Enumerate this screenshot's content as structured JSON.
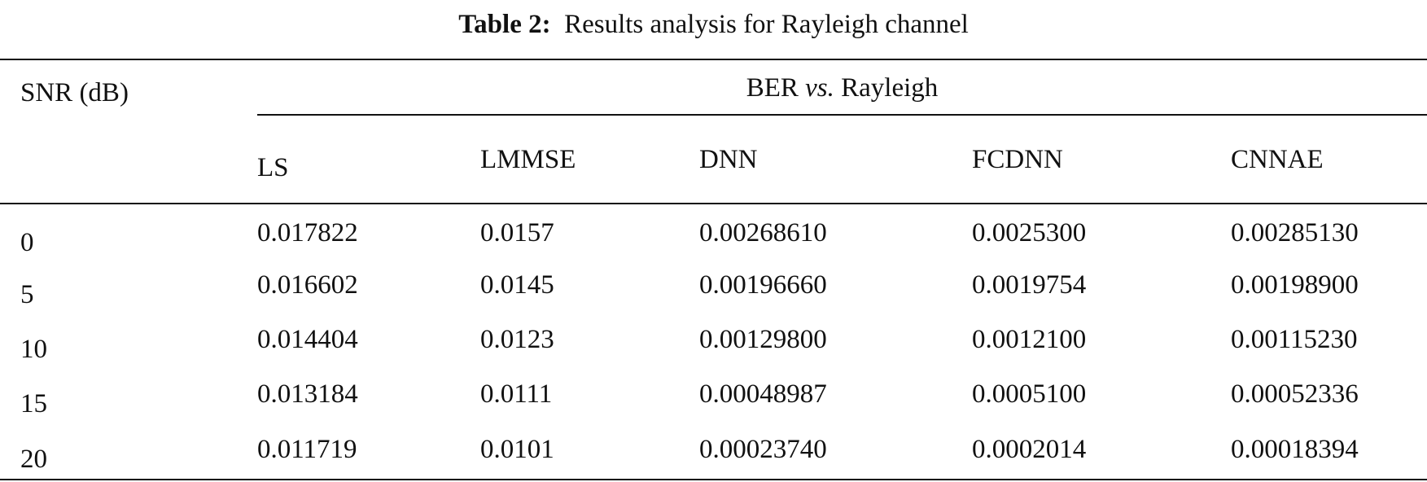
{
  "table": {
    "caption": {
      "label": "Table 2:",
      "text": "Results analysis for Rayleigh channel"
    },
    "stub_header": "SNR (dB)",
    "group_header": [
      "BER",
      "vs.",
      "Rayleigh"
    ],
    "columns": [
      "LS",
      "LMMSE",
      "DNN",
      "FCDNN",
      "CNNAE"
    ],
    "rows": [
      [
        "0",
        "0.017822",
        "0.0157",
        "0.00268610",
        "0.0025300",
        "0.00285130"
      ],
      [
        "5",
        "0.016602",
        "0.0145",
        "0.00196660",
        "0.0019754",
        "0.00198900"
      ],
      [
        "10",
        "0.014404",
        "0.0123",
        "0.00129800",
        "0.0012100",
        "0.00115230"
      ],
      [
        "15",
        "0.013184",
        "0.0111",
        "0.00048987",
        "0.0005100",
        "0.00052336"
      ],
      [
        "20",
        "0.011719",
        "0.0101",
        "0.00023740",
        "0.0002014",
        "0.00018394"
      ]
    ]
  }
}
